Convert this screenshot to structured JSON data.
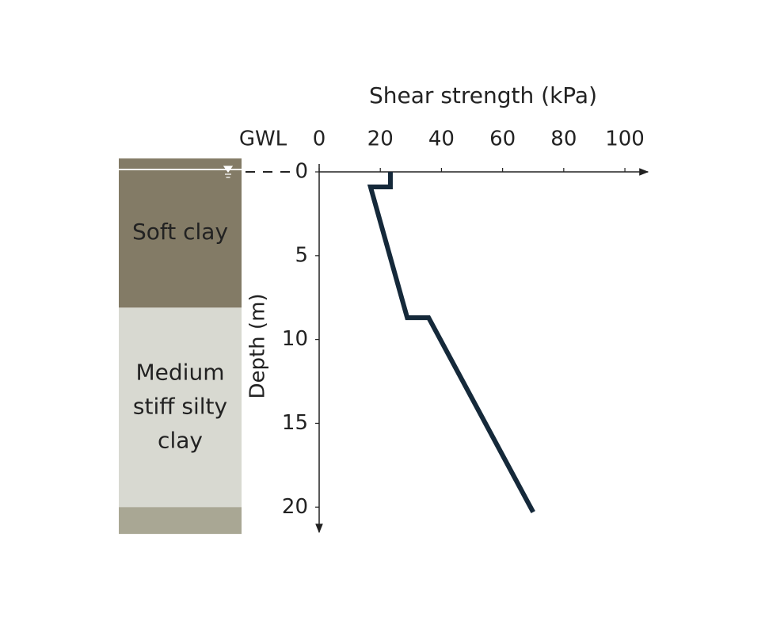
{
  "chart_data": {
    "type": "line",
    "title": "Shear strength (kPa)",
    "ylabel": "Depth (m)",
    "gwl_label": "GWL",
    "gwl_depth": 0,
    "x": [
      23.3,
      23.3,
      16.8,
      28.8,
      35.8,
      70
    ],
    "y": [
      0,
      0.9,
      0.9,
      8.7,
      8.7,
      20.3
    ],
    "color": "#15293a",
    "xlim": [
      0,
      107.5
    ],
    "xticks": [
      0,
      20,
      40,
      60,
      80,
      100
    ],
    "ylim": [
      0,
      21.5
    ],
    "yticks": [
      0,
      5,
      10,
      15,
      20
    ],
    "y_inverted": true,
    "layers": [
      {
        "lines": [
          "Soft clay"
        ],
        "top": -0.8,
        "bottom": 8.1,
        "color": "#837b66"
      },
      {
        "lines": [
          "Medium",
          "stiff silty",
          "clay"
        ],
        "top": 8.1,
        "bottom": 20,
        "color": "#d8d9d1"
      },
      {
        "lines": null,
        "top": 20,
        "bottom": 21.6,
        "color": "#a9a794"
      }
    ]
  }
}
